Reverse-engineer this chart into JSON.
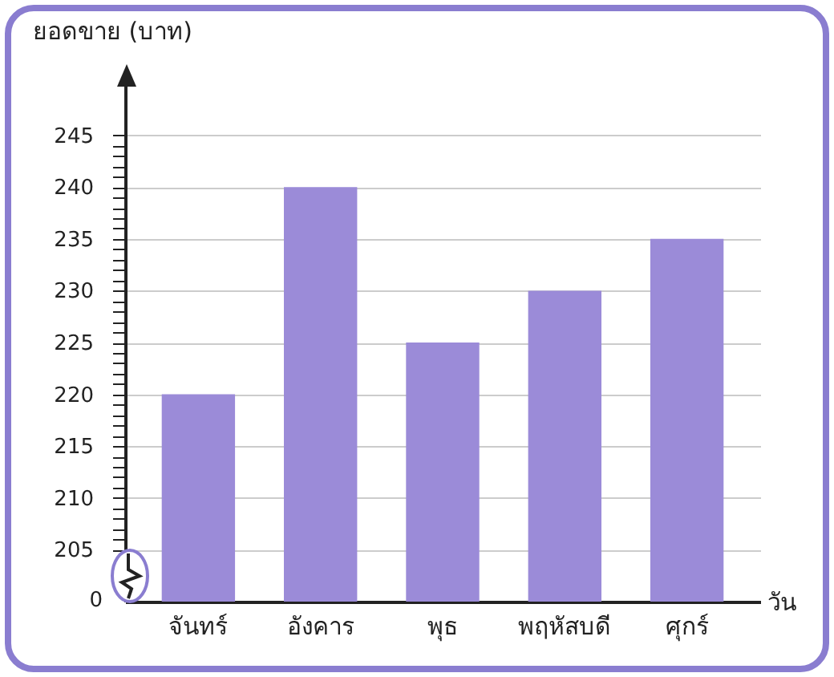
{
  "chart_data": {
    "type": "bar",
    "xlabel": "วัน",
    "ylabel": "ยอดขาย (บาท)",
    "categories": [
      "จันทร์",
      "อังคาร",
      "พุธ",
      "พฤหัสบดี",
      "ศุกร์"
    ],
    "values": [
      220,
      240,
      225,
      230,
      235
    ],
    "color": "#9b8bd8",
    "ylim": [
      200,
      250
    ],
    "annotations": [
      "0"
    ],
    "yticks": [
      205,
      210,
      215,
      220,
      225,
      230,
      235,
      240,
      245,
      {
        "value": 206,
        "label": null
      },
      {
        "value": 207,
        "label": null
      },
      {
        "value": 208,
        "label": null
      },
      {
        "value": 209,
        "label": null
      },
      {
        "value": 211,
        "label": null
      },
      {
        "value": 212,
        "label": null
      },
      {
        "value": 213,
        "label": null
      },
      {
        "value": 214,
        "label": null
      },
      {
        "value": 216,
        "label": null
      },
      {
        "value": 217,
        "label": null
      },
      {
        "value": 218,
        "label": null
      },
      {
        "value": 219,
        "label": null
      },
      {
        "value": 221,
        "label": null
      },
      {
        "value": 222,
        "label": null
      },
      {
        "value": 223,
        "label": null
      },
      {
        "value": 224,
        "label": null
      },
      {
        "value": 226,
        "label": null
      },
      {
        "value": 227,
        "label": null
      },
      {
        "value": 228,
        "label": null
      },
      {
        "value": 229,
        "label": null
      },
      {
        "value": 231,
        "label": null
      },
      {
        "value": 232,
        "label": null
      },
      {
        "value": 233,
        "label": null
      },
      {
        "value": 234,
        "label": null
      },
      {
        "value": 236,
        "label": null
      },
      {
        "value": 237,
        "label": null
      },
      {
        "value": 238,
        "label": null
      },
      {
        "value": 239,
        "label": null
      },
      {
        "value": 241,
        "label": null
      },
      {
        "value": 242,
        "label": null
      },
      {
        "value": 243,
        "label": null
      },
      {
        "value": 244,
        "label": null
      }
    ],
    "grid": "y"
  }
}
